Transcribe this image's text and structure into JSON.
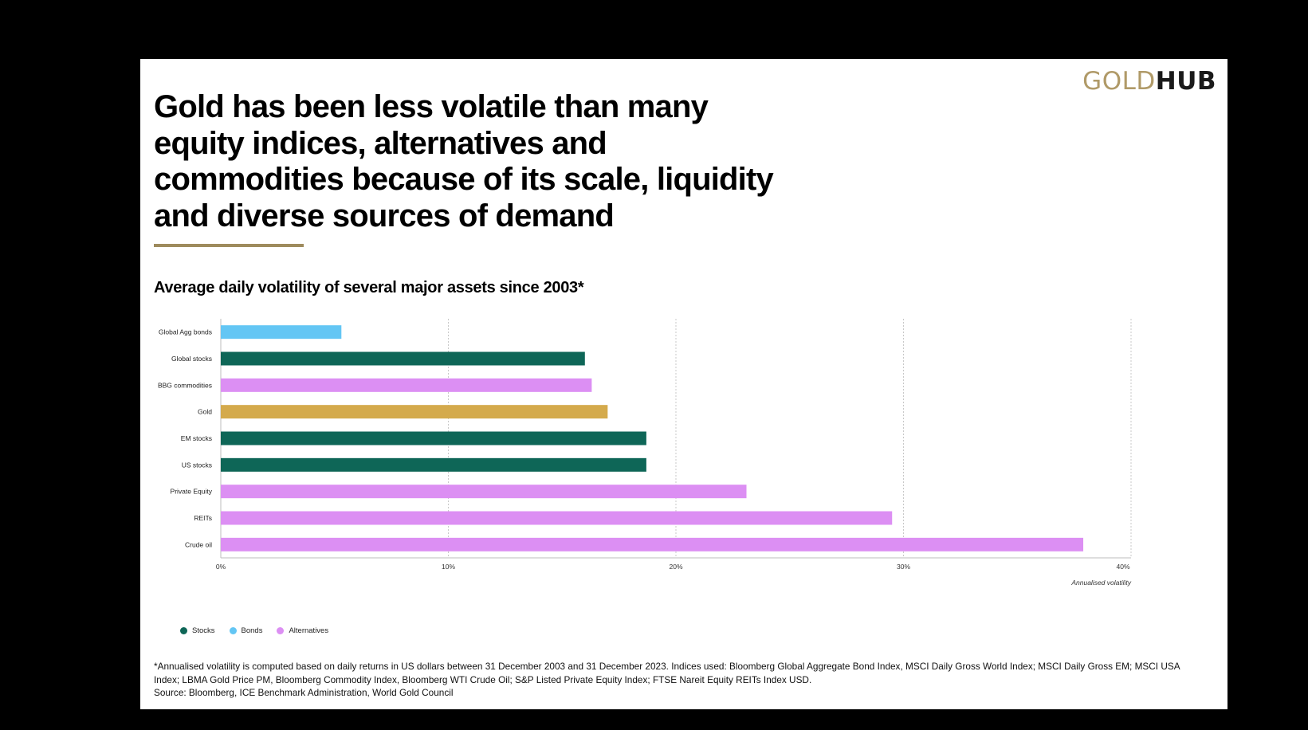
{
  "logo": {
    "gold": "GOLD",
    "hub": "HUB"
  },
  "headline": "Gold has been less volatile than many equity indices, alternatives and commodities because of its scale, liquidity and diverse sources of demand",
  "colors": {
    "stocks": "#0e6657",
    "bonds": "#63c6f4",
    "alternatives": "#dc8ff3",
    "gold": "#d4aa4c",
    "accent_rule": "#9e8b5d"
  },
  "chart_data": {
    "type": "bar",
    "orientation": "horizontal",
    "title": "Average daily volatility of several major assets since 2003*",
    "xlabel": "Annualised volatility",
    "ylabel": "",
    "xlim": [
      0,
      40
    ],
    "ticks": [
      "0%",
      "10%",
      "20%",
      "30%",
      "40%"
    ],
    "grid": "vertical dotted",
    "categories": [
      "Global Agg bonds",
      "Global stocks",
      "BBG commodities",
      "Gold",
      "EM stocks",
      "US stocks",
      "Private Equity",
      "REITs",
      "Crude oil"
    ],
    "values": [
      5.3,
      16.0,
      16.3,
      17.0,
      18.7,
      18.7,
      23.1,
      29.5,
      37.9
    ],
    "groups": [
      "bonds",
      "stocks",
      "alternatives",
      "gold",
      "stocks",
      "stocks",
      "alternatives",
      "alternatives",
      "alternatives"
    ],
    "legend": [
      {
        "name": "Stocks",
        "key": "stocks"
      },
      {
        "name": "Bonds",
        "key": "bonds"
      },
      {
        "name": "Alternatives",
        "key": "alternatives"
      }
    ],
    "legend_position": "bottom-left"
  },
  "footnote": {
    "line1": "*Annualised volatility is computed based on daily returns in US dollars between 31 December 2003 and 31 December 2023. Indices used: Bloomberg Global Aggregate Bond Index, MSCI Daily Gross World Index; MSCI Daily Gross EM; MSCI USA Index; LBMA Gold Price PM, Bloomberg Commodity Index, Bloomberg WTI Crude Oil; S&P Listed Private Equity Index; FTSE Nareit Equity REITs Index USD.",
    "line2": "Source: Bloomberg, ICE Benchmark Administration, World Gold Council"
  }
}
